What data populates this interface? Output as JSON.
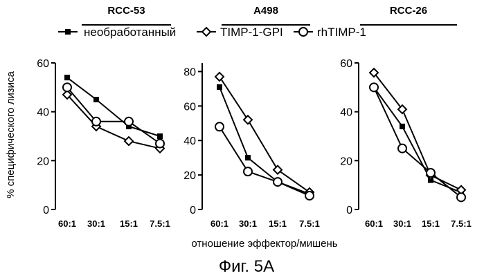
{
  "figure": {
    "caption": "Фиг. 5А",
    "xlabel": "отношение эффектор/мишень",
    "ylabel": "% специфического лизиса"
  },
  "legend": [
    {
      "name": "необработанный",
      "marker": "square"
    },
    {
      "name": "TIMP-1-GPI",
      "marker": "diamond"
    },
    {
      "name": "rhTIMP-1",
      "marker": "circle"
    }
  ],
  "chart_data": [
    {
      "type": "line",
      "title": "RCC-53",
      "categories": [
        "60:1",
        "30:1",
        "15:1",
        "7.5:1"
      ],
      "ylim": [
        0,
        60
      ],
      "yticks": [
        0,
        20,
        40,
        60
      ],
      "series": [
        {
          "name": "необработанный",
          "values": [
            54,
            45,
            34,
            30
          ]
        },
        {
          "name": "TIMP-1-GPI",
          "values": [
            47,
            34,
            28,
            25
          ]
        },
        {
          "name": "rhTIMP-1",
          "values": [
            50,
            36,
            36,
            27
          ]
        }
      ]
    },
    {
      "type": "line",
      "title": "A498",
      "categories": [
        "60:1",
        "30:1",
        "15:1",
        "7.5:1"
      ],
      "ylim": [
        0,
        85
      ],
      "yticks": [
        0,
        20,
        40,
        60,
        80
      ],
      "series": [
        {
          "name": "необработанный",
          "values": [
            71,
            30,
            16,
            9
          ]
        },
        {
          "name": "TIMP-1-GPI",
          "values": [
            77,
            52,
            23,
            10
          ]
        },
        {
          "name": "rhTIMP-1",
          "values": [
            48,
            22,
            16,
            8
          ]
        }
      ]
    },
    {
      "type": "line",
      "title": "RCC-26",
      "categories": [
        "60:1",
        "30:1",
        "15:1",
        "7.5:1"
      ],
      "ylim": [
        0,
        60
      ],
      "yticks": [
        0,
        20,
        40,
        60
      ],
      "series": [
        {
          "name": "необработанный",
          "values": [
            50,
            34,
            12,
            7
          ]
        },
        {
          "name": "TIMP-1-GPI",
          "values": [
            56,
            41,
            14,
            8
          ]
        },
        {
          "name": "rhTIMP-1",
          "values": [
            50,
            25,
            15,
            5
          ]
        }
      ]
    }
  ]
}
